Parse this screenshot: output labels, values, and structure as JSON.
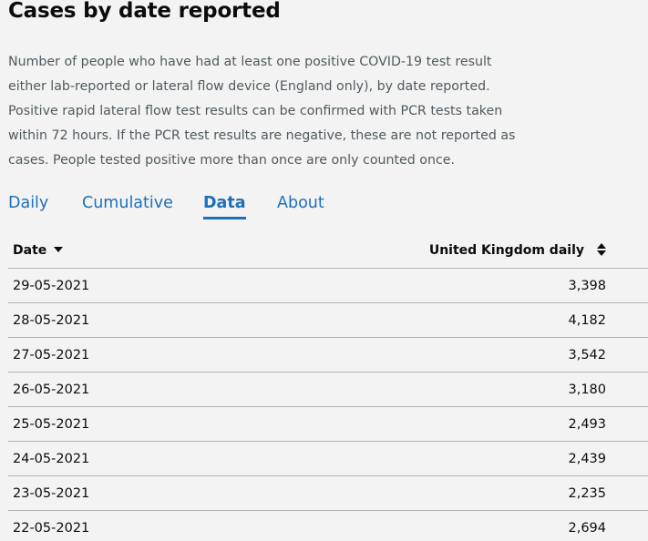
{
  "header": {
    "title": "Cases by date reported",
    "description": "Number of people who have had at least one positive COVID-19 test result either lab-reported or lateral flow device (England only), by date reported. Positive rapid lateral flow test results can be confirmed with PCR tests taken within 72 hours. If the PCR test results are negative, these are not reported as cases. People tested positive more than once are only counted once."
  },
  "tabs": [
    {
      "label": "Daily",
      "active": false
    },
    {
      "label": "Cumulative",
      "active": false
    },
    {
      "label": "Data",
      "active": true
    },
    {
      "label": "About",
      "active": false
    }
  ],
  "table": {
    "columns": {
      "date": "Date",
      "value": "United Kingdom daily"
    },
    "sort": {
      "column": "date",
      "direction": "descending"
    },
    "rows": [
      {
        "date": "29-05-2021",
        "value": "3,398"
      },
      {
        "date": "28-05-2021",
        "value": "4,182"
      },
      {
        "date": "27-05-2021",
        "value": "3,542"
      },
      {
        "date": "26-05-2021",
        "value": "3,180"
      },
      {
        "date": "25-05-2021",
        "value": "2,493"
      },
      {
        "date": "24-05-2021",
        "value": "2,439"
      },
      {
        "date": "23-05-2021",
        "value": "2,235"
      },
      {
        "date": "22-05-2021",
        "value": "2,694"
      }
    ]
  },
  "colors": {
    "link": "#1d70b8",
    "text": "#0b0c0c",
    "secondary_text": "#505a5f",
    "border": "#b1b4b6",
    "background": "#f3f3f3"
  }
}
